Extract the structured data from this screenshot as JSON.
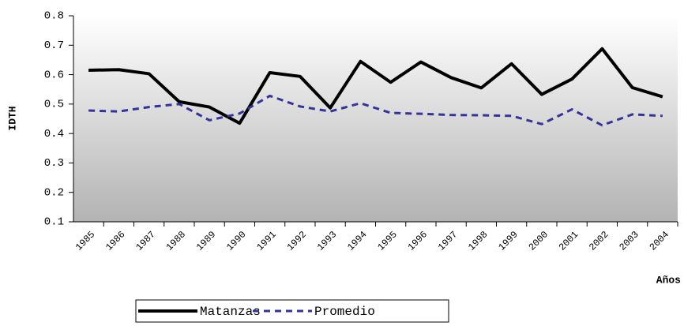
{
  "chart_data": {
    "type": "line",
    "y_label": "IDTH",
    "x_label": "Años",
    "categories": [
      "1985",
      "1986",
      "1987",
      "1988",
      "1989",
      "1990",
      "1991",
      "1992",
      "1993",
      "1994",
      "1995",
      "1996",
      "1997",
      "1998",
      "1999",
      "2000",
      "2001",
      "2002",
      "2003",
      "2004"
    ],
    "series": [
      {
        "name": "Matanzas",
        "color": "#000000",
        "dashed": false,
        "values": [
          0.615,
          0.617,
          0.603,
          0.508,
          0.49,
          0.435,
          0.607,
          0.594,
          0.487,
          0.645,
          0.574,
          0.643,
          0.59,
          0.555,
          0.637,
          0.533,
          0.585,
          0.688,
          0.556,
          0.525
        ]
      },
      {
        "name": "Promedio",
        "color": "#33339a",
        "dashed": true,
        "values": [
          0.478,
          0.475,
          0.49,
          0.5,
          0.445,
          0.468,
          0.528,
          0.492,
          0.475,
          0.503,
          0.47,
          0.467,
          0.463,
          0.462,
          0.46,
          0.432,
          0.482,
          0.428,
          0.465,
          0.46
        ]
      }
    ],
    "ylim": [
      0.1,
      0.8
    ],
    "yticks": [
      0.1,
      0.2,
      0.3,
      0.4,
      0.5,
      0.6,
      0.7,
      0.8
    ],
    "legend": "bottom"
  }
}
